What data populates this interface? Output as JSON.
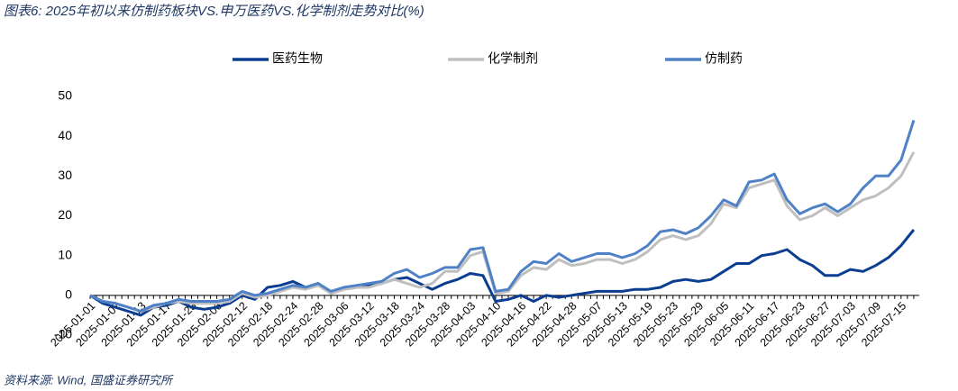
{
  "chart_data": {
    "type": "line",
    "title": "图表6:  2025年初以来仿制药板块VS.申万医药VS.化学制剂走势对比(%)",
    "source": "资料来源:  Wind, 国盛证券研究所",
    "categories": [
      "2025-01-01",
      null,
      "2025-01-07",
      null,
      "2025-01-13",
      null,
      "2025-01-17",
      null,
      "2025-01-23",
      null,
      "2025-02-06",
      null,
      "2025-02-12",
      null,
      "2025-02-18",
      null,
      "2025-02-24",
      null,
      "2025-02-28",
      null,
      "2025-03-06",
      null,
      "2025-03-12",
      null,
      "2025-03-18",
      null,
      "2025-03-24",
      null,
      "2025-03-28",
      null,
      "2025-04-03",
      null,
      "2025-04-10",
      null,
      "2025-04-16",
      null,
      "2025-04-22",
      null,
      "2025-04-28",
      null,
      "2025-05-07",
      null,
      "2025-05-13",
      null,
      "2025-05-19",
      null,
      "2025-05-23",
      null,
      "2025-05-29",
      null,
      "2025-06-05",
      null,
      "2025-06-11",
      null,
      "2025-06-17",
      null,
      "2025-06-23",
      null,
      "2025-06-27",
      null,
      "2025-07-03",
      null,
      "2025-07-09",
      null,
      "2025-07-15",
      null
    ],
    "series": [
      {
        "name": "医药生物",
        "color": "#0b3d91",
        "values": [
          0,
          -2,
          -3,
          -4,
          -5,
          -3,
          -2.5,
          -1.5,
          -3,
          -3.5,
          -3,
          -2,
          0,
          -1,
          2,
          2.5,
          3.5,
          2,
          3,
          0.5,
          1.5,
          2,
          2.5,
          3,
          4,
          4.5,
          3,
          1.5,
          3,
          4,
          5.5,
          5,
          -1.5,
          -1,
          0,
          -1.5,
          0,
          -0.5,
          0,
          0.5,
          1,
          1,
          1,
          1.5,
          1.5,
          2,
          3.5,
          4,
          3.5,
          4,
          6,
          8,
          8,
          10,
          10.5,
          11.5,
          9,
          7.5,
          5,
          5,
          6.5,
          6,
          7.5,
          9.5,
          12.5,
          16.5
        ]
      },
      {
        "name": "化学制剂",
        "color": "#bfbfbf",
        "values": [
          0,
          -1.5,
          -2,
          -3,
          -4,
          -3,
          -2,
          -1.5,
          -2,
          -2,
          -2,
          -1.5,
          0.5,
          -0.5,
          0,
          1,
          2,
          1.5,
          2.5,
          0.5,
          1.5,
          2,
          2,
          3,
          4,
          3,
          2,
          3,
          6,
          6,
          10,
          11,
          0.5,
          1,
          5,
          7,
          6.5,
          9,
          7.5,
          8,
          9,
          9,
          8,
          9,
          11,
          14,
          15,
          14,
          15,
          18,
          23,
          22,
          27,
          28,
          29,
          22.5,
          19,
          20,
          22,
          20,
          22,
          24,
          25,
          27,
          30,
          36
        ]
      },
      {
        "name": "仿制药",
        "color": "#4f81c7",
        "values": [
          0,
          -1.5,
          -2,
          -3,
          -4,
          -2.5,
          -2,
          -1,
          -1.5,
          -1.5,
          -1.5,
          -1,
          1,
          0,
          0.5,
          1.5,
          2.5,
          2,
          3,
          1,
          2,
          2.5,
          3,
          3.5,
          5.5,
          6.5,
          4.5,
          5.5,
          7,
          7,
          11.5,
          12,
          1,
          1.5,
          6,
          8.5,
          8,
          10.5,
          8.5,
          9.5,
          10.5,
          10.5,
          9.5,
          10.5,
          12.5,
          16,
          16.5,
          15.5,
          17,
          20,
          24,
          22.5,
          28.5,
          29,
          30.5,
          24,
          20.5,
          22,
          23,
          21,
          23,
          27,
          30,
          30,
          34,
          44
        ]
      }
    ],
    "ylim": [
      -10,
      50
    ],
    "yticks": [
      -10,
      0,
      10,
      20,
      30,
      40,
      50
    ],
    "grid": false,
    "legend": "top"
  }
}
